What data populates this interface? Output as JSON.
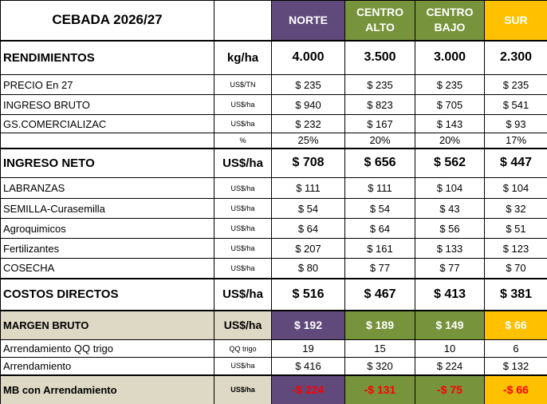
{
  "header": {
    "title": "CEBADA 2026/27",
    "columns": [
      "NORTE",
      "CENTRO ALTO",
      "CENTRO BAJO",
      "SUR"
    ]
  },
  "table": {
    "rows": [
      {
        "label": "RENDIMIENTOS",
        "unit": "kg/ha",
        "values": [
          "4.000",
          "3.500",
          "3.000",
          "2.300"
        ]
      },
      {
        "label": "PRECIO  En 27",
        "unit": "US$/TN",
        "values": [
          "$ 235",
          "$ 235",
          "$ 235",
          "$ 235"
        ]
      },
      {
        "label": "INGRESO BRUTO",
        "unit": "US$/ha",
        "values": [
          "$ 940",
          "$ 823",
          "$ 705",
          "$ 541"
        ]
      },
      {
        "label": "GS.COMERCIALIZAC",
        "unit": "US$/ha",
        "values": [
          "$ 232",
          "$ 167",
          "$ 143",
          "$ 93"
        ]
      },
      {
        "label": null,
        "unit": "%",
        "values": [
          "25%",
          "20%",
          "20%",
          "17%"
        ]
      },
      {
        "label": "INGRESO NETO",
        "unit": "US$/ha",
        "values": [
          "$ 708",
          "$ 656",
          "$ 562",
          "$ 447"
        ]
      },
      {
        "label": "LABRANZAS",
        "unit": "US$/ha",
        "values": [
          "$ 111",
          "$ 111",
          "$ 104",
          "$ 104"
        ]
      },
      {
        "label": "SEMILLA-Curasemilla",
        "unit": "US$/ha",
        "values": [
          "$ 54",
          "$ 54",
          "$ 43",
          "$ 32"
        ]
      },
      {
        "label": "Agroquimicos",
        "unit": "US$/ha",
        "values": [
          "$ 64",
          "$ 64",
          "$ 56",
          "$ 51"
        ]
      },
      {
        "label": "Fertilizantes",
        "unit": "US$/ha",
        "values": [
          "$ 207",
          "$ 161",
          "$ 133",
          "$ 123"
        ]
      },
      {
        "label": "COSECHA",
        "unit": "US$/ha",
        "values": [
          "$ 80",
          "$ 77",
          "$ 77",
          "$ 70"
        ]
      },
      {
        "label": "COSTOS DIRECTOS",
        "unit": "US$/ha",
        "values": [
          "$ 516",
          "$ 467",
          "$ 413",
          "$ 381"
        ]
      },
      {
        "label": "MARGEN BRUTO",
        "unit": "US$/ha",
        "values": [
          "$ 192",
          "$ 189",
          "$ 149",
          "$ 66"
        ]
      },
      {
        "label": "Arrendamiento QQ trigo",
        "unit": "QQ trigo",
        "values": [
          "19",
          "15",
          "10",
          "6"
        ]
      },
      {
        "label": "Arrendamiento",
        "unit": "US$/ha",
        "values": [
          "$ 416",
          "$ 320",
          "$ 224",
          "$ 132"
        ]
      },
      {
        "label": "MB con Arrendamiento",
        "unit": "US$/ha",
        "values": [
          "-$ 224",
          "-$ 131",
          "-$ 75",
          "-$ 66"
        ]
      }
    ]
  }
}
